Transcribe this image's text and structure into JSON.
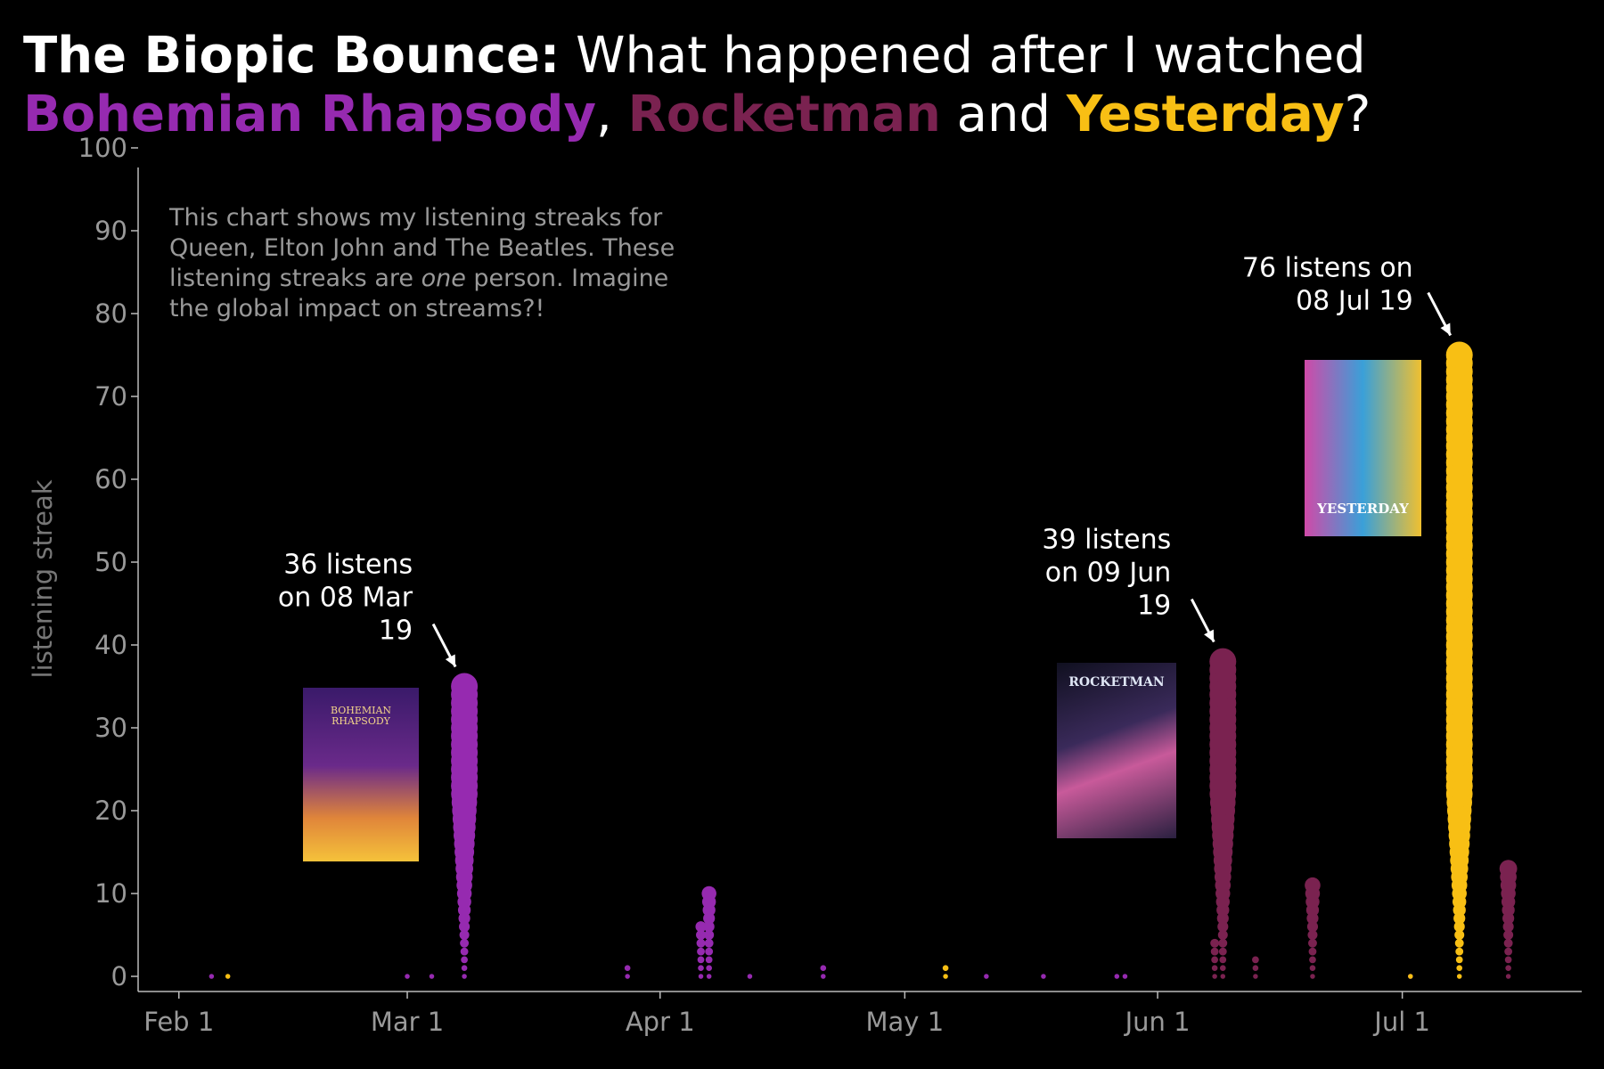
{
  "title": {
    "prefix": "The Biopic Bounce:",
    "line1": " What happened after I watched",
    "film1": "Bohemian Rhapsody",
    "sep1": ", ",
    "film2": "Rocketman",
    "sep2": " and ",
    "film3": "Yesterday",
    "end": "?"
  },
  "colors": {
    "queen": "#962AB0",
    "elton": "#7A2250",
    "beatles": "#F8BF14",
    "axis": "#bbbbbb",
    "text": "#999999"
  },
  "note": {
    "part1": "This chart shows my listening streaks for Queen, Elton John and The Beatles. These listening streaks are ",
    "emph": "one",
    "part2": " person. Imagine the global impact on streams?!"
  },
  "posters": {
    "bohemian": "BOHEMIAN\nRHAPSODY",
    "rocketman": "ROCKETMAN",
    "yesterday": "YESTERDAY"
  },
  "chart_data": {
    "type": "scatter",
    "ylabel": "listening streak",
    "ylim": [
      0,
      100
    ],
    "yticks": [
      0,
      10,
      20,
      30,
      40,
      50,
      60,
      70,
      80,
      90,
      100
    ],
    "xticks": [
      {
        "date": "2019-02-01",
        "label": "Feb 1"
      },
      {
        "date": "2019-03-01",
        "label": "Mar 1"
      },
      {
        "date": "2019-04-01",
        "label": "Apr 1"
      },
      {
        "date": "2019-05-01",
        "label": "May 1"
      },
      {
        "date": "2019-06-01",
        "label": "Jun 1"
      },
      {
        "date": "2019-07-01",
        "label": "Jul 1"
      }
    ],
    "xlim": [
      "2019-01-27",
      "2019-07-23"
    ],
    "series": [
      {
        "artist": "queen",
        "points": [
          {
            "date": "2019-02-05",
            "streak": 1
          },
          {
            "date": "2019-03-01",
            "streak": 1
          },
          {
            "date": "2019-03-04",
            "streak": 1
          },
          {
            "date": "2019-03-08",
            "streak": 36
          },
          {
            "date": "2019-03-28",
            "streak": 2
          },
          {
            "date": "2019-04-06",
            "streak": 7
          },
          {
            "date": "2019-04-07",
            "streak": 11
          },
          {
            "date": "2019-04-12",
            "streak": 1
          },
          {
            "date": "2019-04-21",
            "streak": 2
          },
          {
            "date": "2019-05-11",
            "streak": 1
          },
          {
            "date": "2019-05-18",
            "streak": 1
          },
          {
            "date": "2019-05-27",
            "streak": 1
          },
          {
            "date": "2019-05-28",
            "streak": 1
          },
          {
            "date": "2019-07-02",
            "streak": 1
          }
        ]
      },
      {
        "artist": "elton",
        "points": [
          {
            "date": "2019-06-08",
            "streak": 5
          },
          {
            "date": "2019-06-09",
            "streak": 39
          },
          {
            "date": "2019-06-13",
            "streak": 3
          },
          {
            "date": "2019-06-20",
            "streak": 12
          },
          {
            "date": "2019-07-14",
            "streak": 14
          }
        ]
      },
      {
        "artist": "beatles",
        "points": [
          {
            "date": "2019-02-07",
            "streak": 1
          },
          {
            "date": "2019-05-06",
            "streak": 2
          },
          {
            "date": "2019-07-02",
            "streak": 1
          },
          {
            "date": "2019-07-08",
            "streak": 76
          }
        ]
      }
    ],
    "annotations": [
      {
        "lines": [
          "36 listens",
          "on 08 Mar",
          "19"
        ],
        "date": "2019-03-08",
        "streak": 36
      },
      {
        "lines": [
          "39 listens",
          "on 09 Jun",
          "19"
        ],
        "date": "2019-06-09",
        "streak": 39
      },
      {
        "lines": [
          "76 listens on",
          "08 Jul 19"
        ],
        "date": "2019-07-08",
        "streak": 76
      }
    ]
  }
}
